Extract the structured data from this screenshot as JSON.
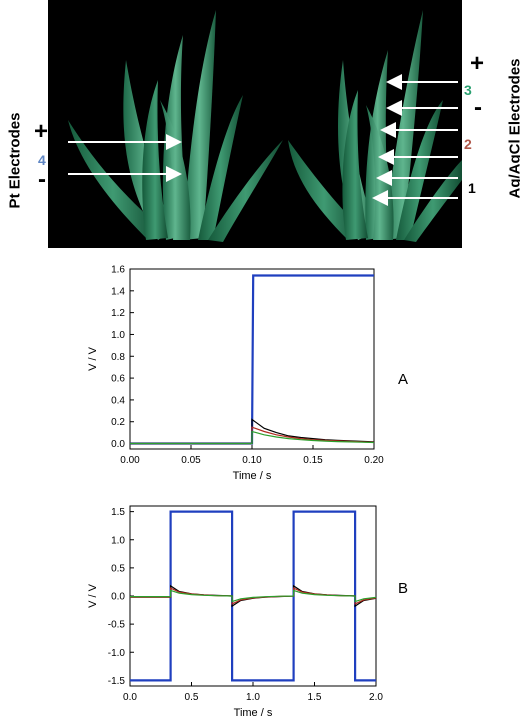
{
  "labels": {
    "pt_electrodes": "Pt Electrodes",
    "agcl_electrodes": "Ag/AgCl Electrodes",
    "plus": "+",
    "minus": "-",
    "n1": "1",
    "n2": "2",
    "n3": "3",
    "n4": "4",
    "panel_a": "A",
    "panel_b": "B"
  },
  "colors": {
    "blue": "#1f3fbf",
    "black": "#000000",
    "green": "#2ca02c",
    "red": "#b02a1f",
    "n4": "#5f86c4",
    "n3": "#2aa070",
    "n2": "#b0584a"
  },
  "chart_data": [
    {
      "type": "line",
      "xlabel": "Time / s",
      "ylabel": "V / V",
      "xlim": [
        0.0,
        0.2
      ],
      "ylim": [
        -0.05,
        1.6
      ],
      "xticks": [
        "0.00",
        "0.05",
        "0.10",
        "0.15",
        "0.20"
      ],
      "yticks": [
        "0.0",
        "0.2",
        "0.4",
        "0.6",
        "0.8",
        "1.0",
        "1.2",
        "1.4",
        "1.6"
      ],
      "series": [
        {
          "color": "#1f3fbf",
          "x": [
            0.0,
            0.099,
            0.1,
            0.101,
            0.2
          ],
          "y": [
            0.0,
            0.0,
            0.0,
            1.54,
            1.54
          ]
        },
        {
          "color": "#000000",
          "x": [
            0.0,
            0.1,
            0.1,
            0.11,
            0.12,
            0.13,
            0.14,
            0.15,
            0.16,
            0.17,
            0.18,
            0.19,
            0.2
          ],
          "y": [
            0.0,
            0.0,
            0.22,
            0.14,
            0.1,
            0.07,
            0.055,
            0.045,
            0.035,
            0.03,
            0.025,
            0.02,
            0.015
          ]
        },
        {
          "color": "#b02a1f",
          "x": [
            0.0,
            0.1,
            0.1,
            0.11,
            0.12,
            0.13,
            0.14,
            0.15,
            0.16,
            0.17,
            0.18,
            0.19,
            0.2
          ],
          "y": [
            0.0,
            0.0,
            0.15,
            0.11,
            0.08,
            0.06,
            0.045,
            0.035,
            0.03,
            0.025,
            0.02,
            0.015,
            0.012
          ]
        },
        {
          "color": "#2ca02c",
          "x": [
            0.0,
            0.1,
            0.1,
            0.11,
            0.12,
            0.13,
            0.14,
            0.15,
            0.16,
            0.17,
            0.18,
            0.19,
            0.2
          ],
          "y": [
            0.0,
            0.0,
            0.11,
            0.08,
            0.06,
            0.045,
            0.035,
            0.028,
            0.022,
            0.018,
            0.015,
            0.012,
            0.01
          ]
        }
      ]
    },
    {
      "type": "line",
      "xlabel": "Time / s",
      "ylabel": "V / V",
      "xlim": [
        0.0,
        2.0
      ],
      "ylim": [
        -1.6,
        1.6
      ],
      "xticks": [
        "0.0",
        "0.5",
        "1.0",
        "1.5",
        "2.0"
      ],
      "yticks": [
        "-1.5",
        "-1.0",
        "-0.5",
        "0.0",
        "0.5",
        "1.0",
        "1.5"
      ],
      "series": [
        {
          "color": "#1f3fbf",
          "x": [
            0.0,
            0.33,
            0.33,
            0.83,
            0.83,
            1.33,
            1.33,
            1.83,
            1.83,
            2.0
          ],
          "y": [
            -1.5,
            -1.5,
            1.5,
            1.5,
            -1.5,
            -1.5,
            1.5,
            1.5,
            -1.5,
            -1.5
          ]
        },
        {
          "color": "#000000",
          "x": [
            0.0,
            0.33,
            0.33,
            0.4,
            0.5,
            0.6,
            0.7,
            0.83,
            0.83,
            0.9,
            1.0,
            1.1,
            1.2,
            1.33,
            1.33,
            1.4,
            1.5,
            1.6,
            1.7,
            1.83,
            1.83,
            1.9,
            2.0
          ],
          "y": [
            -0.02,
            -0.02,
            0.18,
            0.08,
            0.04,
            0.02,
            0.01,
            0.0,
            -0.18,
            -0.08,
            -0.04,
            -0.02,
            -0.01,
            0.0,
            0.18,
            0.08,
            0.04,
            0.02,
            0.01,
            0.0,
            -0.18,
            -0.08,
            -0.04
          ]
        },
        {
          "color": "#b02a1f",
          "x": [
            0.0,
            0.33,
            0.33,
            0.4,
            0.5,
            0.6,
            0.7,
            0.83,
            0.83,
            0.9,
            1.0,
            1.1,
            1.2,
            1.33,
            1.33,
            1.4,
            1.5,
            1.6,
            1.7,
            1.83,
            1.83,
            1.9,
            2.0
          ],
          "y": [
            -0.02,
            -0.02,
            0.14,
            0.07,
            0.035,
            0.018,
            0.008,
            0.0,
            -0.14,
            -0.07,
            -0.035,
            -0.018,
            -0.008,
            0.0,
            0.14,
            0.07,
            0.035,
            0.018,
            0.008,
            0.0,
            -0.14,
            -0.07,
            -0.035
          ]
        },
        {
          "color": "#2ca02c",
          "x": [
            0.0,
            0.33,
            0.33,
            0.4,
            0.5,
            0.6,
            0.7,
            0.83,
            0.83,
            0.9,
            1.0,
            1.1,
            1.2,
            1.33,
            1.33,
            1.4,
            1.5,
            1.6,
            1.7,
            1.83,
            1.83,
            1.9,
            2.0
          ],
          "y": [
            -0.01,
            -0.01,
            0.1,
            0.05,
            0.025,
            0.012,
            0.006,
            0.0,
            -0.1,
            -0.05,
            -0.025,
            -0.012,
            -0.006,
            0.0,
            0.1,
            0.05,
            0.025,
            0.012,
            0.006,
            0.0,
            -0.1,
            -0.05,
            -0.025
          ]
        }
      ]
    }
  ]
}
